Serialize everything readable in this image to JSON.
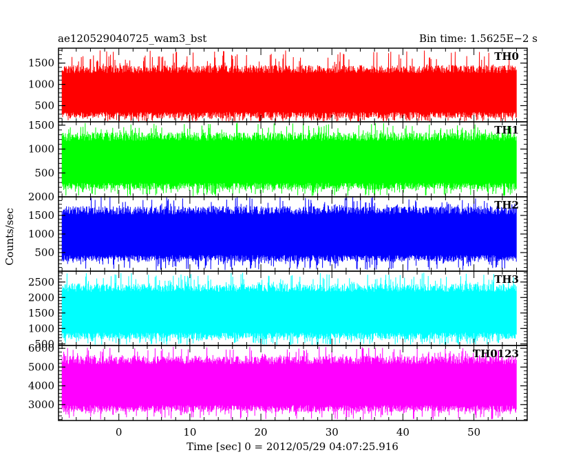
{
  "header": {
    "title": "ae120529040725_wam3_bst",
    "bin_time": "Bin time: 1.5625E−2 s"
  },
  "chart_data": {
    "type": "line",
    "title": "ae120529040725_wam3_bst",
    "xlabel": "Time [sec] 0 = 2012/05/29 04:07:25.916",
    "ylabel": "Counts/sec",
    "xlim": [
      -8.5,
      57.5
    ],
    "data_range_x": [
      -8,
      56
    ],
    "x_ticks": [
      0,
      10,
      20,
      30,
      40,
      50
    ],
    "x_tick_labels": [
      "0",
      "10",
      "20",
      "30",
      "40",
      "50"
    ],
    "grid": false,
    "panels": [
      {
        "name": "TH0",
        "color": "#ff0000",
        "ylim": [
          120,
          1850
        ],
        "y_ticks": [
          500,
          1000,
          1500
        ],
        "y_tick_labels": [
          "500",
          "1000",
          "1500"
        ],
        "typical_range": [
          200,
          1450
        ],
        "peak_max": 1800
      },
      {
        "name": "TH1",
        "color": "#00ff00",
        "ylim": [
          0,
          1570
        ],
        "y_ticks": [
          500,
          1000,
          1500
        ],
        "y_tick_labels": [
          "500",
          "1000",
          "1500"
        ],
        "typical_range": [
          150,
          1350
        ],
        "peak_max": 1550
      },
      {
        "name": "TH2",
        "color": "#0000ff",
        "ylim": [
          0,
          2000
        ],
        "y_ticks": [
          500,
          1000,
          1500,
          2000
        ],
        "y_tick_labels": [
          "500",
          "1000",
          "1500",
          "2000"
        ],
        "typical_range": [
          250,
          1750
        ],
        "peak_max": 2000
      },
      {
        "name": "TH3",
        "color": "#00ffff",
        "ylim": [
          450,
          2850
        ],
        "y_ticks": [
          500,
          1000,
          1500,
          2000,
          2500
        ],
        "y_tick_labels": [
          "500",
          "1000",
          "1500",
          "2000",
          "2500"
        ],
        "typical_range": [
          650,
          2450
        ],
        "peak_max": 2800
      },
      {
        "name": "TH0123",
        "color": "#ff00ff",
        "ylim": [
          2150,
          6150
        ],
        "y_ticks": [
          3000,
          4000,
          5000,
          6000
        ],
        "y_tick_labels": [
          "3000",
          "4000",
          "5000",
          "6000"
        ],
        "typical_range": [
          2600,
          5600
        ],
        "peak_max": 6100
      }
    ]
  }
}
